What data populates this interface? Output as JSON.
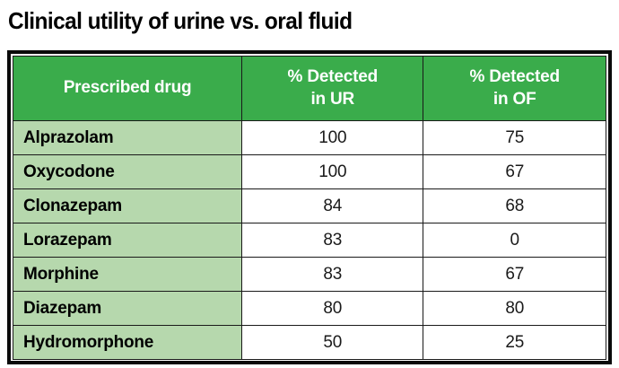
{
  "title": "Clinical utility of urine vs. oral fluid",
  "colors": {
    "header_green": "#3aac4b",
    "row_green": "#b6d8ad",
    "border_black": "#0a0a0a",
    "header_text": "#ffffff",
    "body_text": "#000000"
  },
  "table": {
    "headers": {
      "drug": "Prescribed drug",
      "ur": "% Detected\nin UR",
      "of": "% Detected\nin OF"
    }
  },
  "chart_data": {
    "type": "table",
    "title": "Clinical utility of urine vs. oral fluid",
    "columns": [
      "Prescribed drug",
      "% Detected in UR",
      "% Detected in OF"
    ],
    "rows": [
      [
        "Alprazolam",
        100,
        75
      ],
      [
        "Oxycodone",
        100,
        67
      ],
      [
        "Clonazepam",
        84,
        68
      ],
      [
        "Lorazepam",
        83,
        0
      ],
      [
        "Morphine",
        83,
        67
      ],
      [
        "Diazepam",
        80,
        80
      ],
      [
        "Hydromorphone",
        50,
        25
      ]
    ]
  }
}
